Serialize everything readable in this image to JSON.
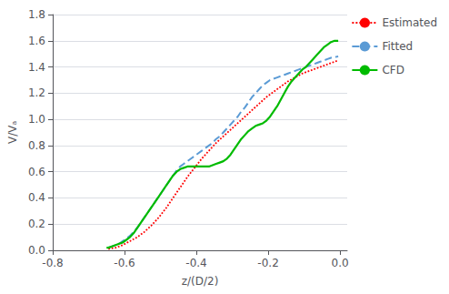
{
  "chart_data": {
    "type": "line",
    "xlabel": "z/(D/2)",
    "ylabel": "V/Vₐ",
    "xlim": [
      -0.8,
      0.02
    ],
    "ylim": [
      0.0,
      1.8
    ],
    "xticks": [
      -0.8,
      -0.6,
      -0.4,
      -0.2,
      {
        "value": 0.0,
        "label": "0.0"
      }
    ],
    "yticks": [
      {
        "value": 0.0,
        "label": "0.0"
      },
      0.2,
      0.4,
      0.6,
      0.8,
      {
        "value": 1.0,
        "label": "1.0"
      },
      1.2,
      1.4,
      1.6,
      1.8
    ],
    "grid": "y",
    "legend": "right",
    "series": [
      {
        "name": "Estimated",
        "color": "#ff0000",
        "line_style": "dotted",
        "x": [
          -0.645,
          -0.625,
          -0.605,
          -0.585,
          -0.565,
          -0.545,
          -0.525,
          -0.505,
          -0.485,
          -0.465,
          -0.445,
          -0.425,
          -0.405,
          -0.385,
          -0.365,
          -0.345,
          -0.325,
          -0.305,
          -0.285,
          -0.265,
          -0.245,
          -0.225,
          -0.205,
          -0.185,
          -0.165,
          -0.145,
          -0.125,
          -0.105,
          -0.085,
          -0.065,
          -0.045,
          -0.025,
          -0.005
        ],
        "values": [
          0.01,
          0.02,
          0.04,
          0.07,
          0.1,
          0.14,
          0.19,
          0.25,
          0.32,
          0.4,
          0.48,
          0.56,
          0.63,
          0.7,
          0.76,
          0.82,
          0.87,
          0.92,
          0.97,
          1.02,
          1.07,
          1.12,
          1.17,
          1.21,
          1.25,
          1.29,
          1.32,
          1.35,
          1.37,
          1.39,
          1.41,
          1.43,
          1.45
        ]
      },
      {
        "name": "Fitted",
        "color": "#5b9bd5",
        "line_style": "dashed",
        "x": [
          -0.645,
          -0.635,
          -0.625,
          -0.615,
          -0.605,
          -0.595,
          -0.585,
          -0.575,
          -0.565,
          -0.555,
          -0.545,
          -0.535,
          -0.525,
          -0.515,
          -0.505,
          -0.495,
          -0.485,
          -0.475,
          -0.465,
          -0.455,
          -0.445,
          -0.435,
          -0.425,
          -0.415,
          -0.405,
          -0.395,
          -0.385,
          -0.375,
          -0.365,
          -0.355,
          -0.345,
          -0.335,
          -0.325,
          -0.315,
          -0.305,
          -0.295,
          -0.285,
          -0.275,
          -0.265,
          -0.255,
          -0.245,
          -0.235,
          -0.225,
          -0.215,
          -0.205,
          -0.195,
          -0.185,
          -0.175,
          -0.165,
          -0.155,
          -0.145,
          -0.135,
          -0.125,
          -0.115,
          -0.105,
          -0.095,
          -0.085,
          -0.075,
          -0.065,
          -0.055,
          -0.045,
          -0.035,
          -0.025,
          -0.015,
          -0.005
        ],
        "values": [
          0.02,
          0.03,
          0.04,
          0.05,
          0.07,
          0.09,
          0.11,
          0.14,
          0.17,
          0.21,
          0.25,
          0.29,
          0.33,
          0.37,
          0.41,
          0.45,
          0.49,
          0.53,
          0.57,
          0.61,
          0.64,
          0.66,
          0.68,
          0.7,
          0.72,
          0.74,
          0.76,
          0.78,
          0.8,
          0.82,
          0.85,
          0.87,
          0.9,
          0.93,
          0.96,
          0.99,
          1.02,
          1.06,
          1.09,
          1.13,
          1.17,
          1.2,
          1.23,
          1.26,
          1.28,
          1.3,
          1.31,
          1.32,
          1.33,
          1.34,
          1.35,
          1.36,
          1.37,
          1.38,
          1.39,
          1.4,
          1.41,
          1.42,
          1.43,
          1.44,
          1.45,
          1.46,
          1.47,
          1.475,
          1.48
        ]
      },
      {
        "name": "CFD",
        "color": "#00bb00",
        "line_style": "solid",
        "x": [
          -0.65,
          -0.645,
          -0.635,
          -0.625,
          -0.615,
          -0.605,
          -0.595,
          -0.585,
          -0.575,
          -0.565,
          -0.555,
          -0.545,
          -0.535,
          -0.525,
          -0.515,
          -0.505,
          -0.495,
          -0.485,
          -0.475,
          -0.465,
          -0.455,
          -0.445,
          -0.435,
          -0.425,
          -0.415,
          -0.405,
          -0.395,
          -0.385,
          -0.375,
          -0.365,
          -0.355,
          -0.345,
          -0.335,
          -0.325,
          -0.315,
          -0.305,
          -0.295,
          -0.285,
          -0.275,
          -0.265,
          -0.255,
          -0.245,
          -0.235,
          -0.225,
          -0.215,
          -0.205,
          -0.195,
          -0.185,
          -0.175,
          -0.165,
          -0.155,
          -0.145,
          -0.135,
          -0.125,
          -0.115,
          -0.105,
          -0.095,
          -0.085,
          -0.075,
          -0.065,
          -0.055,
          -0.045,
          -0.035,
          -0.025,
          -0.015,
          -0.005
        ],
        "values": [
          0.02,
          0.02,
          0.03,
          0.04,
          0.05,
          0.06,
          0.08,
          0.1,
          0.13,
          0.17,
          0.21,
          0.25,
          0.29,
          0.33,
          0.37,
          0.41,
          0.45,
          0.49,
          0.53,
          0.57,
          0.6,
          0.62,
          0.63,
          0.64,
          0.64,
          0.64,
          0.64,
          0.64,
          0.64,
          0.64,
          0.65,
          0.66,
          0.67,
          0.68,
          0.7,
          0.73,
          0.77,
          0.81,
          0.85,
          0.88,
          0.91,
          0.93,
          0.95,
          0.96,
          0.97,
          0.99,
          1.02,
          1.06,
          1.1,
          1.15,
          1.2,
          1.25,
          1.29,
          1.32,
          1.35,
          1.38,
          1.4,
          1.43,
          1.46,
          1.49,
          1.52,
          1.55,
          1.57,
          1.59,
          1.6,
          1.6
        ]
      }
    ]
  }
}
